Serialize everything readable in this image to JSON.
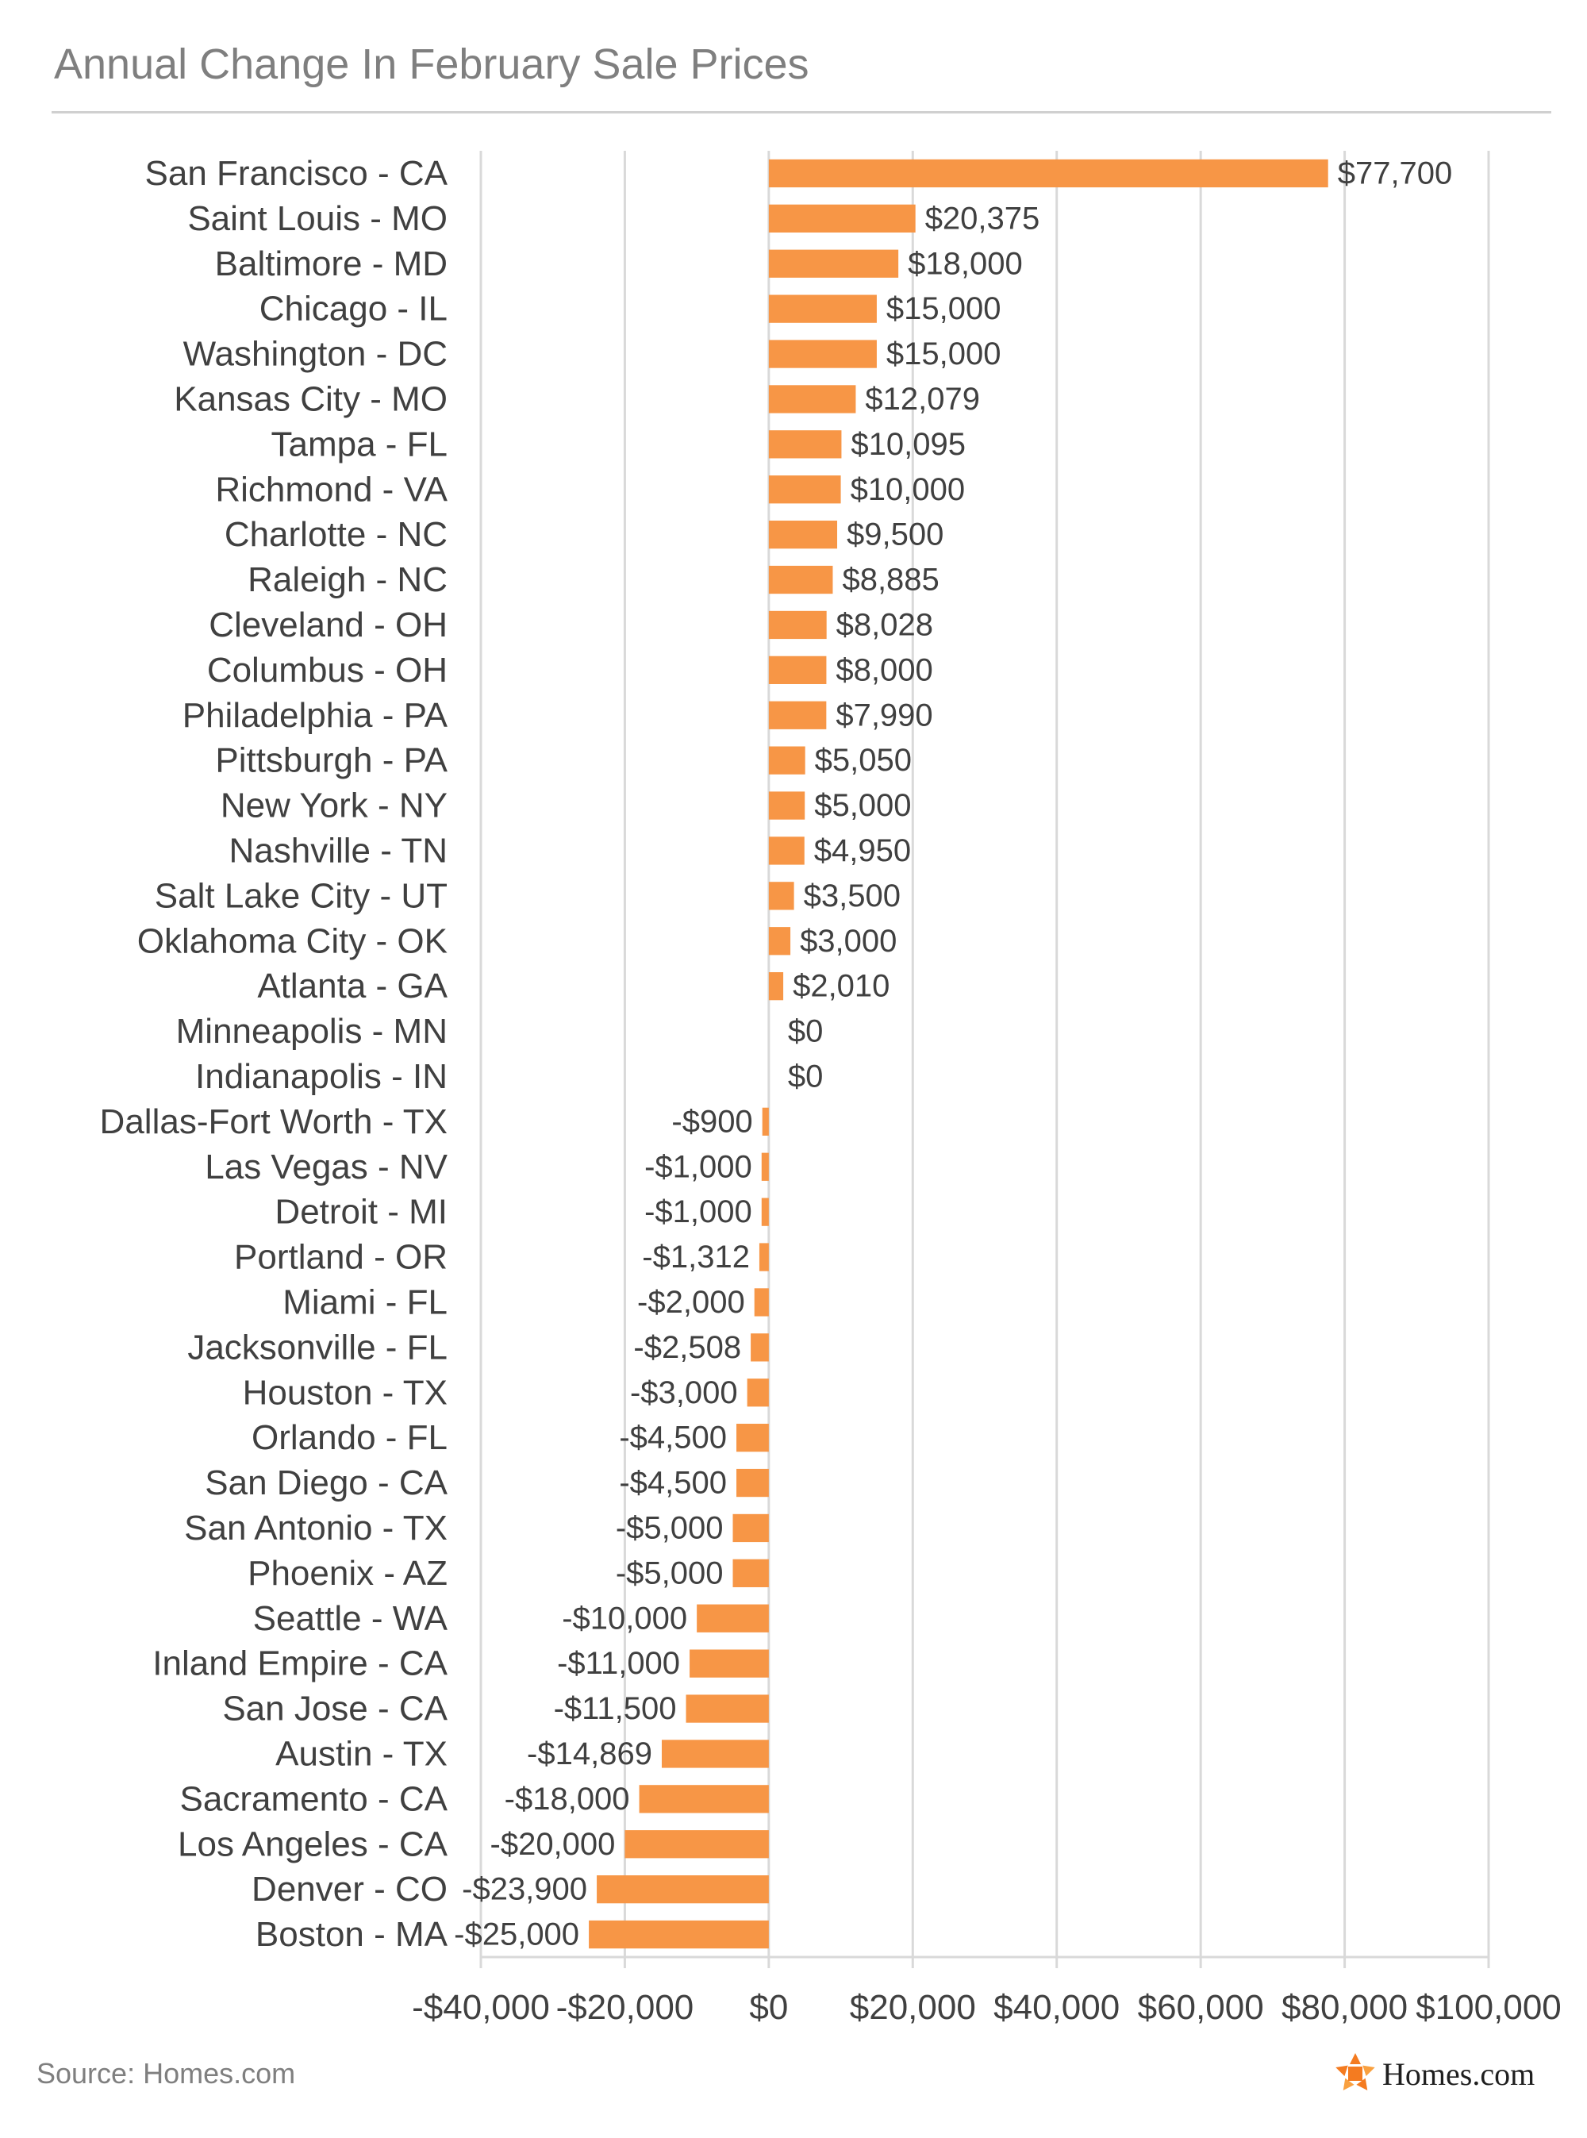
{
  "title": "Annual Change In February Sale Prices",
  "source": "Source: Homes.com",
  "logo_text": "Homes.com",
  "colors": {
    "bar": "#F79646",
    "grid": "#d9d9d9",
    "text": "#404040",
    "muted": "#7f7f7f"
  },
  "chart_data": {
    "type": "bar",
    "orientation": "horizontal",
    "title": "Annual Change In February Sale Prices",
    "xlabel": "",
    "ylabel": "",
    "xlim": [
      -40000,
      100000
    ],
    "x_ticks": [
      -40000,
      -20000,
      0,
      20000,
      40000,
      60000,
      80000,
      100000
    ],
    "x_tick_labels": [
      "-$40,000",
      "-$20,000",
      "$0",
      "$20,000",
      "$40,000",
      "$60,000",
      "$80,000",
      "$100,000"
    ],
    "grid": true,
    "categories": [
      "San Francisco - CA",
      "Saint Louis - MO",
      "Baltimore - MD",
      "Chicago - IL",
      "Washington - DC",
      "Kansas City - MO",
      "Tampa - FL",
      "Richmond - VA",
      "Charlotte - NC",
      "Raleigh - NC",
      "Cleveland - OH",
      "Columbus - OH",
      "Philadelphia - PA",
      "Pittsburgh - PA",
      "New York - NY",
      "Nashville - TN",
      "Salt Lake City - UT",
      "Oklahoma City - OK",
      "Atlanta - GA",
      "Minneapolis - MN",
      "Indianapolis - IN",
      "Dallas-Fort Worth - TX",
      "Las Vegas - NV",
      "Detroit - MI",
      "Portland - OR",
      "Miami - FL",
      "Jacksonville - FL",
      "Houston - TX",
      "Orlando - FL",
      "San Diego - CA",
      "San Antonio - TX",
      "Phoenix - AZ",
      "Seattle - WA",
      "Inland Empire - CA",
      "San Jose - CA",
      "Austin - TX",
      "Sacramento - CA",
      "Los Angeles - CA",
      "Denver - CO",
      "Boston - MA"
    ],
    "values": [
      77700,
      20375,
      18000,
      15000,
      15000,
      12079,
      10095,
      10000,
      9500,
      8885,
      8028,
      8000,
      7990,
      5050,
      5000,
      4950,
      3500,
      3000,
      2010,
      0,
      0,
      -900,
      -1000,
      -1000,
      -1312,
      -2000,
      -2508,
      -3000,
      -4500,
      -4500,
      -5000,
      -5000,
      -10000,
      -11000,
      -11500,
      -14869,
      -18000,
      -20000,
      -23900,
      -25000
    ],
    "data_labels": [
      "$77,700",
      "$20,375",
      "$18,000",
      "$15,000",
      "$15,000",
      "$12,079",
      "$10,095",
      "$10,000",
      "$9,500",
      "$8,885",
      "$8,028",
      "$8,000",
      "$7,990",
      "$5,050",
      "$5,000",
      "$4,950",
      "$3,500",
      "$3,000",
      "$2,010",
      "$0",
      "$0",
      "-$900",
      "-$1,000",
      "-$1,000",
      "-$1,312",
      "-$2,000",
      "-$2,508",
      "-$3,000",
      "-$4,500",
      "-$4,500",
      "-$5,000",
      "-$5,000",
      "-$10,000",
      "-$11,000",
      "-$11,500",
      "-$14,869",
      "-$18,000",
      "-$20,000",
      "-$23,900",
      "-$25,000"
    ]
  }
}
